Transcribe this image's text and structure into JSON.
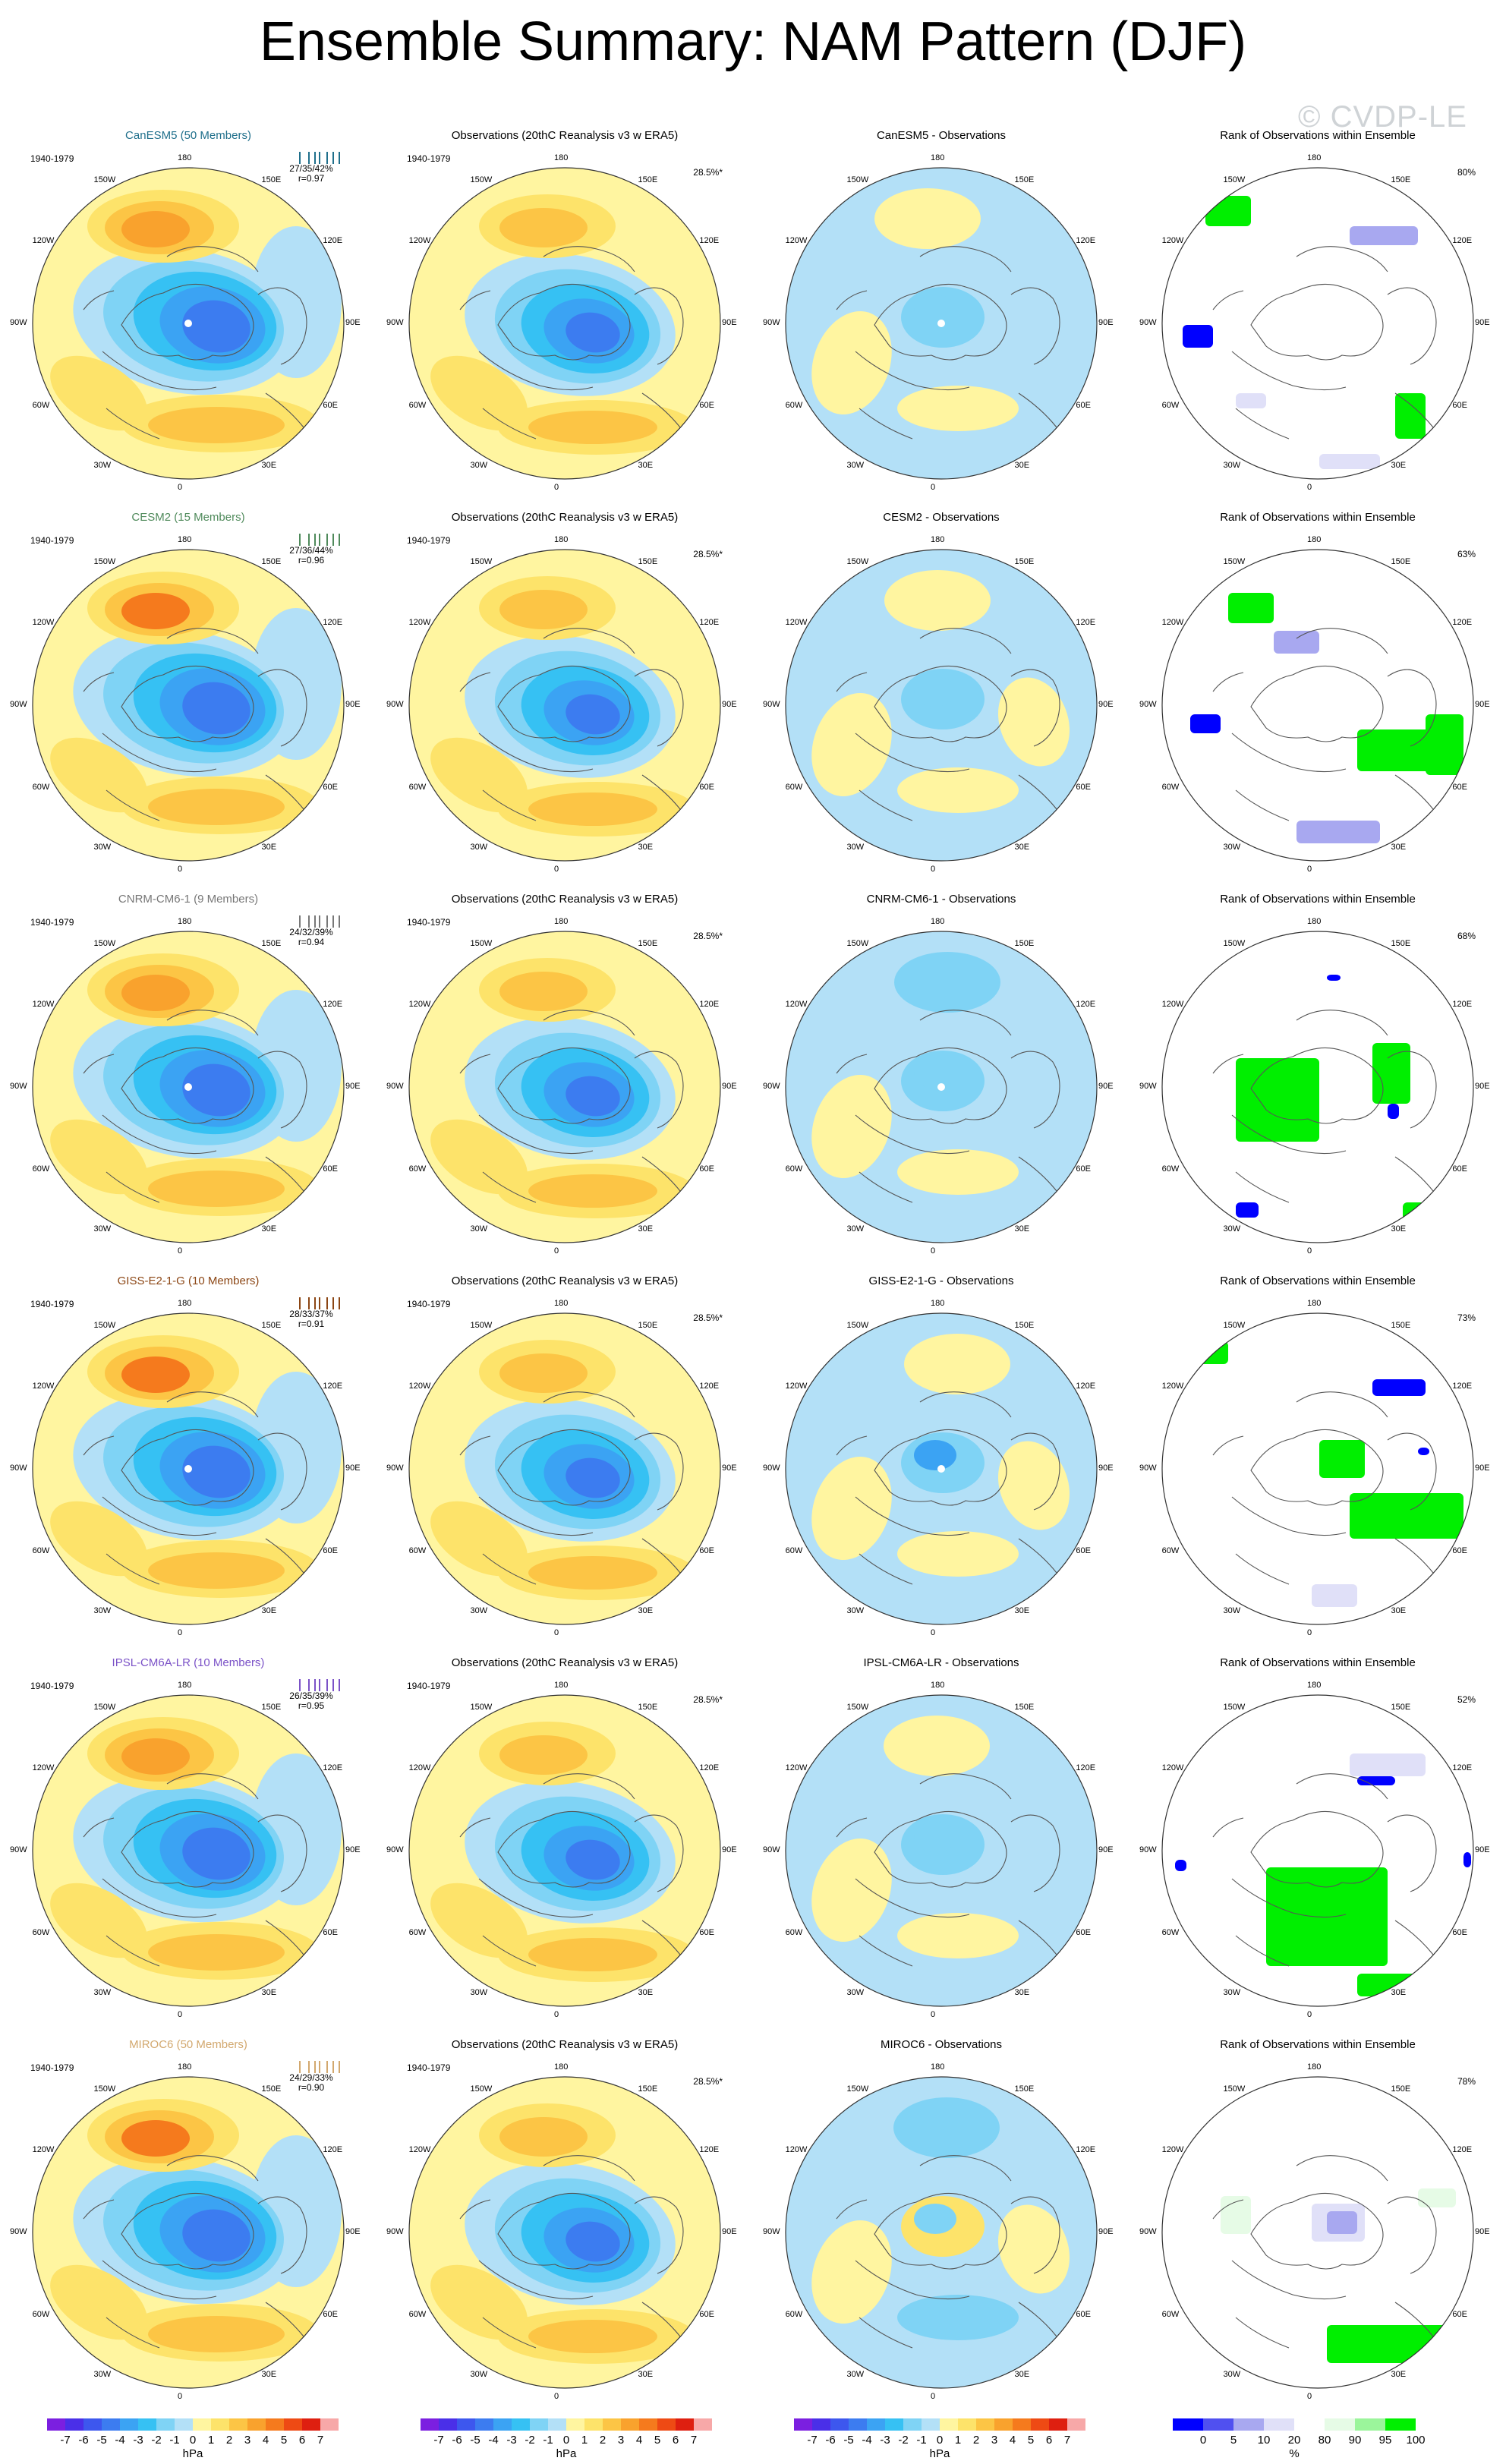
{
  "title": "Ensemble Summary: NAM Pattern (DJF)",
  "watermark": "© CVDP-LE",
  "labels": {
    "obs_title": "Observations (20thC Reanalysis v3 w ERA5)",
    "period": "1940-1979",
    "obs_pct": "28.5%*",
    "rank_title": "Rank of Observations within Ensemble"
  },
  "lon_labels": [
    "180",
    "150E",
    "120E",
    "90E",
    "60E",
    "30E",
    "0",
    "30W",
    "60W",
    "90W",
    "120W",
    "150W"
  ],
  "models": [
    {
      "title": "CanESM5 (50 Members)",
      "color": "#1f6f8b",
      "stats": "27/35/42%",
      "r": "r=0.97",
      "diff_title": "CanESM5 - Observations",
      "rank_pct": "80%"
    },
    {
      "title": "CESM2 (15 Members)",
      "color": "#4f8a5b",
      "stats": "27/36/44%",
      "r": "r=0.96",
      "diff_title": "CESM2 - Observations",
      "rank_pct": "63%"
    },
    {
      "title": "CNRM-CM6-1 (9 Members)",
      "color": "#777777",
      "stats": "24/32/39%",
      "r": "r=0.94",
      "diff_title": "CNRM-CM6-1 - Observations",
      "rank_pct": "68%"
    },
    {
      "title": "GISS-E2-1-G (10 Members)",
      "color": "#8b4513",
      "stats": "28/33/37%",
      "r": "r=0.91",
      "diff_title": "GISS-E2-1-G - Observations",
      "rank_pct": "73%"
    },
    {
      "title": "IPSL-CM6A-LR (10 Members)",
      "color": "#7b52c7",
      "stats": "26/35/39%",
      "r": "r=0.95",
      "diff_title": "IPSL-CM6A-LR - Observations",
      "rank_pct": "52%"
    },
    {
      "title": "MIROC6 (50 Members)",
      "color": "#d2a86e",
      "stats": "24/29/33%",
      "r": "r=0.90",
      "diff_title": "MIROC6 - Observations",
      "rank_pct": "78%"
    }
  ],
  "colorbar_hpa": {
    "tick_labels": [
      "-7",
      "-6",
      "-5",
      "-4",
      "-3",
      "-2",
      "-1",
      "0",
      "1",
      "2",
      "3",
      "4",
      "5",
      "6",
      "7"
    ],
    "unit": "hPa",
    "colors": [
      "#7b1fe0",
      "#4a2fe8",
      "#3d57ee",
      "#3c7cf0",
      "#3ba3f3",
      "#36c1f3",
      "#7fd3f5",
      "#b3e0f7",
      "#fff5a0",
      "#fde36a",
      "#fcc545",
      "#f9a22d",
      "#f57a1d",
      "#ee4a14",
      "#de1f10",
      "#f7a8a8"
    ]
  },
  "colorbar_rank": {
    "tick_labels": [
      "0",
      "5",
      "10",
      "20",
      "80",
      "90",
      "95",
      "100"
    ],
    "unit": "%",
    "colors": [
      "#0000ff",
      "#5050f0",
      "#a8a8f0",
      "#e0e0f8",
      "#ffffff",
      "#e6fbe6",
      "#9bf59b",
      "#00ef00"
    ]
  }
}
